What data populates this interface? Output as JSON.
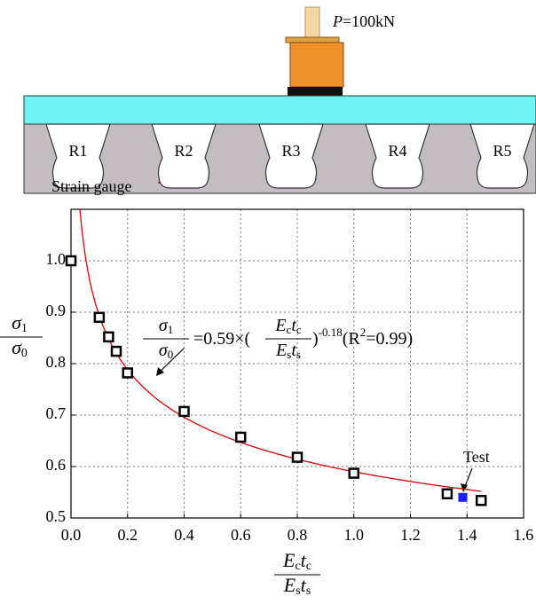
{
  "diagram": {
    "load_label": {
      "symbol": "P",
      "text": "=100kN"
    },
    "ribs": [
      "R1",
      "R2",
      "R3",
      "R4",
      "R5"
    ],
    "gauge_label": "Strain gauge"
  },
  "chart_data": {
    "type": "scatter",
    "x": [
      0,
      0.1,
      0.133,
      0.16,
      0.2,
      0.4,
      0.6,
      0.8,
      1.0,
      1.33,
      1.45
    ],
    "values": [
      1.0,
      0.89,
      0.852,
      0.824,
      0.782,
      0.707,
      0.657,
      0.618,
      0.587,
      0.547,
      0.534
    ],
    "color": "#000000",
    "test_point": {
      "label": "Test",
      "x": 1.385,
      "y": 0.54,
      "color": "#1f1fff"
    },
    "fit": {
      "coefficient": 0.59,
      "exponent": -0.18,
      "r2": 0.99,
      "x_range": [
        0.0315,
        1.45
      ],
      "color": "#e00000",
      "pieces": {
        "eq": "=",
        "times": "×(",
        "close": ")",
        "r_open": "(R",
        "r_sup": "2",
        "r_eq": "=",
        "r_close": ")"
      }
    },
    "x_label": {
      "num": [
        "E",
        "c",
        "t",
        "c"
      ],
      "den": [
        "E",
        "s",
        "t",
        "s"
      ]
    },
    "y_label": {
      "num": [
        "σ",
        "1"
      ],
      "den": [
        "σ",
        "0"
      ]
    },
    "xlim": [
      0,
      1.6
    ],
    "ylim": [
      0.5,
      1.1
    ],
    "xticks": [
      {
        "value": 0,
        "label": "0.0"
      },
      0.2,
      0.4,
      0.6,
      0.8,
      {
        "value": 1,
        "label": "1.0"
      },
      1.2,
      1.4,
      1.6
    ],
    "yticks": [
      0.5,
      0.6,
      0.7,
      0.8,
      0.9,
      {
        "value": 1,
        "label": "1.0"
      }
    ],
    "grid": true
  }
}
